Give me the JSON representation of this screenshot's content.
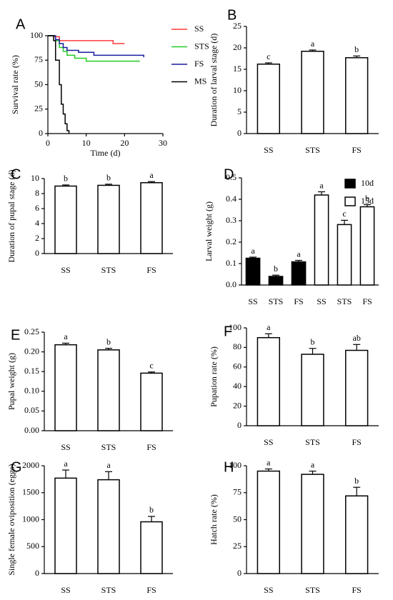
{
  "chart_data": [
    {
      "type": "line",
      "panel_label": "A",
      "ylabel": "Survival rate (%)",
      "xlabel": "Time (d)",
      "xlim": [
        0,
        30
      ],
      "xticks": [
        0,
        10,
        20,
        30
      ],
      "ylim": [
        0,
        100
      ],
      "yticks": [
        0,
        25,
        50,
        75,
        100
      ],
      "series": [
        {
          "name": "SS",
          "color": "#ff3b3b",
          "x": [
            0,
            1.5,
            3,
            17,
            20
          ],
          "values": [
            100,
            99,
            95,
            92,
            92
          ]
        },
        {
          "name": "STS",
          "color": "#22cc22",
          "x": [
            0,
            2,
            3,
            4,
            5,
            7,
            10,
            24
          ],
          "values": [
            100,
            95,
            88,
            84,
            80,
            77,
            74,
            74
          ]
        },
        {
          "name": "FS",
          "color": "#1a1aa0",
          "x": [
            0,
            2,
            3,
            4,
            5,
            8,
            12,
            25
          ],
          "values": [
            100,
            96,
            92,
            88,
            85,
            83,
            80,
            78
          ]
        },
        {
          "name": "MS",
          "color": "#000000",
          "x": [
            0,
            1.5,
            2,
            3,
            3.5,
            4,
            4.5,
            5,
            5.5
          ],
          "values": [
            100,
            95,
            75,
            50,
            30,
            20,
            10,
            3,
            0
          ]
        }
      ]
    },
    {
      "type": "bar",
      "panel_label": "B",
      "ylabel": "Duration of larval stage (d)",
      "categories": [
        "SS",
        "STS",
        "FS"
      ],
      "values": [
        16.2,
        19.2,
        17.7
      ],
      "errors": [
        0.3,
        0.3,
        0.4
      ],
      "letters": [
        "c",
        "a",
        "b"
      ],
      "color": "#ffffff",
      "ylim": [
        0,
        25
      ],
      "yticks": [
        0,
        5,
        10,
        15,
        20,
        25
      ]
    },
    {
      "type": "bar",
      "panel_label": "C",
      "ylabel": "Duration of pupal stage (d)",
      "categories": [
        "SS",
        "STS",
        "FS"
      ],
      "values": [
        9.0,
        9.1,
        9.45
      ],
      "errors": [
        0.15,
        0.15,
        0.15
      ],
      "letters": [
        "b",
        "b",
        "a"
      ],
      "color": "#ffffff",
      "ylim": [
        0,
        10
      ],
      "yticks": [
        0,
        2,
        4,
        6,
        8,
        10
      ]
    },
    {
      "type": "bar",
      "panel_label": "D",
      "ylabel": "Larval weight (g)",
      "categories": [
        "SS",
        "STS",
        "FS",
        "SS",
        "STS",
        "FS"
      ],
      "series": [
        {
          "name": "10d",
          "color": "#000000",
          "values": [
            0.125,
            0.04,
            0.108,
            null,
            null,
            null
          ],
          "errors": [
            0.005,
            0.006,
            0.007,
            null,
            null,
            null
          ],
          "letters": [
            "a",
            "b",
            "a",
            null,
            null,
            null
          ]
        },
        {
          "name": "15d",
          "color": "#ffffff",
          "values": [
            null,
            null,
            null,
            0.42,
            0.282,
            0.365
          ],
          "errors": [
            null,
            null,
            null,
            0.015,
            0.02,
            0.01
          ],
          "letters": [
            null,
            null,
            null,
            "a",
            "c",
            "b"
          ]
        }
      ],
      "ylim": [
        0,
        0.5
      ],
      "yticks": [
        {
          "value": 0,
          "label": "0.0"
        },
        0.1,
        0.2,
        0.3,
        0.4,
        0.5
      ]
    },
    {
      "type": "bar",
      "panel_label": "E",
      "ylabel": "Pupal weight (g)",
      "categories": [
        "SS",
        "STS",
        "FS"
      ],
      "values": [
        0.218,
        0.205,
        0.146
      ],
      "errors": [
        0.004,
        0.004,
        0.003
      ],
      "letters": [
        "a",
        "b",
        "c"
      ],
      "color": "#ffffff",
      "ylim": [
        0,
        0.25
      ],
      "yticks": [
        {
          "value": 0,
          "label": "0.00"
        },
        {
          "value": 0.05,
          "label": "0.05"
        },
        {
          "value": 0.1,
          "label": "0.10"
        },
        {
          "value": 0.15,
          "label": "0.15"
        },
        {
          "value": 0.2,
          "label": "0.20"
        },
        {
          "value": 0.25,
          "label": "0.25"
        }
      ]
    },
    {
      "type": "bar",
      "panel_label": "F",
      "ylabel": "Pupation rate (%)",
      "categories": [
        "SS",
        "STS",
        "FS"
      ],
      "values": [
        90,
        73,
        77
      ],
      "errors": [
        4,
        6,
        6
      ],
      "letters": [
        "a",
        "b",
        "ab"
      ],
      "color": "#ffffff",
      "ylim": [
        0,
        100
      ],
      "yticks": [
        0,
        20,
        40,
        60,
        80,
        100
      ]
    },
    {
      "type": "bar",
      "panel_label": "G",
      "ylabel": "Single female oviposition (eggs)",
      "categories": [
        "SS",
        "STS",
        "FS"
      ],
      "values": [
        1770,
        1740,
        960
      ],
      "errors": [
        150,
        150,
        100
      ],
      "letters": [
        "a",
        "a",
        "b"
      ],
      "color": "#ffffff",
      "ylim": [
        0,
        2000
      ],
      "yticks": [
        0,
        500,
        1000,
        1500,
        2000
      ]
    },
    {
      "type": "bar",
      "panel_label": "H",
      "ylabel": "Hatch rate (%)",
      "categories": [
        "SS",
        "STS",
        "FS"
      ],
      "values": [
        95,
        92,
        72
      ],
      "errors": [
        2,
        3,
        8
      ],
      "letters": [
        "a",
        "a",
        "b"
      ],
      "color": "#ffffff",
      "ylim": [
        0,
        100
      ],
      "yticks": [
        0,
        25,
        50,
        75,
        100
      ]
    }
  ]
}
